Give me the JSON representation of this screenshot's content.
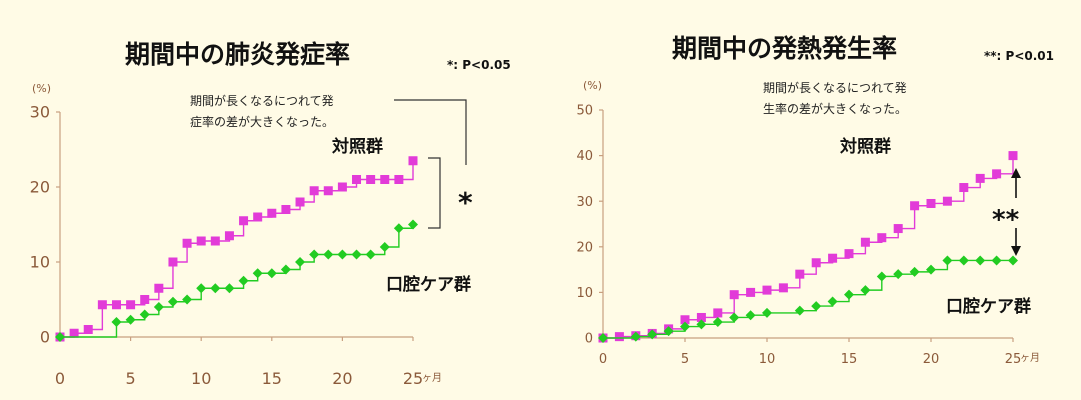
{
  "chart_data": [
    {
      "type": "line",
      "title": "期間中の肺炎発症率",
      "significance": "*: P<0.05",
      "unit_label": "(%)",
      "x_unit": "ヶ月",
      "xlim": [
        0,
        25
      ],
      "ylim": [
        0,
        30
      ],
      "xticks": [
        0,
        5,
        10,
        15,
        20,
        25
      ],
      "yticks": [
        0,
        10,
        20,
        30
      ],
      "annotation_lines": [
        "期間が長くなるにつれて発",
        "症率の差が大きくなった。"
      ],
      "comparison_mark": "*",
      "series": [
        {
          "name": "対照群",
          "color": "#e23bd8",
          "points": [
            [
              0,
              0
            ],
            [
              1,
              0.5
            ],
            [
              2,
              1
            ],
            [
              3,
              4.3
            ],
            [
              4,
              4.3
            ],
            [
              5,
              4.3
            ],
            [
              6,
              5
            ],
            [
              7,
              6.5
            ],
            [
              8,
              10
            ],
            [
              9,
              12.5
            ],
            [
              10,
              12.8
            ],
            [
              11,
              12.8
            ],
            [
              12,
              13.5
            ],
            [
              13,
              15.5
            ],
            [
              14,
              16
            ],
            [
              15,
              16.5
            ],
            [
              16,
              17
            ],
            [
              17,
              18
            ],
            [
              18,
              19.5
            ],
            [
              19,
              19.5
            ],
            [
              20,
              20
            ],
            [
              21,
              21
            ],
            [
              22,
              21
            ],
            [
              23,
              21
            ],
            [
              24,
              21
            ],
            [
              25,
              23.5
            ]
          ]
        },
        {
          "name": "口腔ケア群",
          "color": "#22cc22",
          "points": [
            [
              0,
              0
            ],
            [
              4,
              2
            ],
            [
              5,
              2.3
            ],
            [
              6,
              3
            ],
            [
              7,
              4
            ],
            [
              8,
              4.7
            ],
            [
              9,
              5
            ],
            [
              10,
              6.5
            ],
            [
              11,
              6.5
            ],
            [
              12,
              6.5
            ],
            [
              13,
              7.5
            ],
            [
              14,
              8.5
            ],
            [
              15,
              8.5
            ],
            [
              16,
              9
            ],
            [
              17,
              10
            ],
            [
              18,
              11
            ],
            [
              19,
              11
            ],
            [
              20,
              11
            ],
            [
              21,
              11
            ],
            [
              22,
              11
            ],
            [
              23,
              12
            ],
            [
              24,
              14.5
            ],
            [
              25,
              15
            ]
          ]
        }
      ]
    },
    {
      "type": "line",
      "title": "期間中の発熱発生率",
      "significance": "**: P<0.01",
      "unit_label": "(%)",
      "x_unit": "ヶ月",
      "xlim": [
        0,
        25
      ],
      "ylim": [
        0,
        50
      ],
      "xticks": [
        0,
        5,
        10,
        15,
        20,
        25
      ],
      "yticks": [
        0,
        10,
        20,
        30,
        40,
        50
      ],
      "annotation_lines": [
        "期間が長くなるにつれて発",
        "生率の差が大きくなった。"
      ],
      "comparison_mark": "**",
      "series": [
        {
          "name": "対照群",
          "color": "#e23bd8",
          "points": [
            [
              0,
              0
            ],
            [
              1,
              0.3
            ],
            [
              2,
              0.5
            ],
            [
              3,
              1
            ],
            [
              4,
              2
            ],
            [
              5,
              4
            ],
            [
              6,
              4.5
            ],
            [
              7,
              5.5
            ],
            [
              8,
              9.5
            ],
            [
              9,
              10
            ],
            [
              10,
              10.5
            ],
            [
              11,
              11
            ],
            [
              12,
              14
            ],
            [
              13,
              16.5
            ],
            [
              14,
              17.5
            ],
            [
              15,
              18.5
            ],
            [
              16,
              21
            ],
            [
              17,
              22
            ],
            [
              18,
              24
            ],
            [
              19,
              29
            ],
            [
              20,
              29.5
            ],
            [
              21,
              30
            ],
            [
              22,
              33
            ],
            [
              23,
              35
            ],
            [
              24,
              36
            ],
            [
              25,
              40
            ]
          ]
        },
        {
          "name": "口腔ケア群",
          "color": "#22cc22",
          "points": [
            [
              0,
              0
            ],
            [
              2,
              0.3
            ],
            [
              3,
              0.8
            ],
            [
              4,
              1.5
            ],
            [
              5,
              2.5
            ],
            [
              6,
              3
            ],
            [
              7,
              3.5
            ],
            [
              8,
              4.5
            ],
            [
              9,
              5
            ],
            [
              10,
              5.5
            ],
            [
              12,
              6
            ],
            [
              13,
              7
            ],
            [
              14,
              8
            ],
            [
              15,
              9.5
            ],
            [
              16,
              10.5
            ],
            [
              17,
              13.5
            ],
            [
              18,
              14
            ],
            [
              19,
              14.5
            ],
            [
              20,
              15
            ],
            [
              21,
              17
            ],
            [
              22,
              17
            ],
            [
              23,
              17
            ],
            [
              24,
              17
            ],
            [
              25,
              17
            ]
          ]
        }
      ]
    }
  ]
}
